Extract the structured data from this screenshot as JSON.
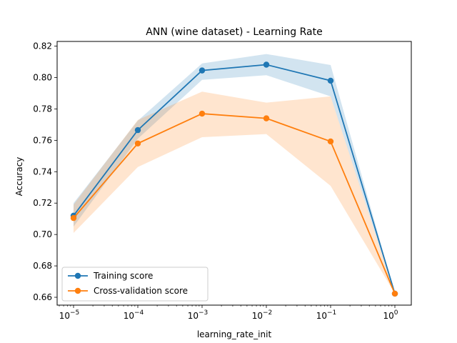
{
  "chart_data": {
    "type": "line",
    "title": "ANN (wine dataset) - Learning Rate",
    "xlabel": "learning_rate_init",
    "ylabel": "Accuracy",
    "xscale": "log",
    "xlim": [
      1e-05,
      1
    ],
    "ylim": [
      0.655,
      0.823
    ],
    "x": [
      1e-05,
      0.0001,
      0.001,
      0.01,
      0.1,
      1
    ],
    "x_tick_labels": [
      {
        "base": "10",
        "exp": "−5"
      },
      {
        "base": "10",
        "exp": "−4"
      },
      {
        "base": "10",
        "exp": "−3"
      },
      {
        "base": "10",
        "exp": "−2"
      },
      {
        "base": "10",
        "exp": "−1"
      },
      {
        "base": "10",
        "exp": "0"
      }
    ],
    "y_ticks": [
      0.66,
      0.68,
      0.7,
      0.72,
      0.74,
      0.76,
      0.78,
      0.8,
      0.82
    ],
    "y_tick_labels": [
      "0.66",
      "0.68",
      "0.70",
      "0.72",
      "0.74",
      "0.76",
      "0.78",
      "0.80",
      "0.82"
    ],
    "legend_position": "lower-left",
    "series": [
      {
        "name": "Training score",
        "color": "#1f77b4",
        "values": [
          0.712,
          0.7665,
          0.8045,
          0.8082,
          0.798,
          0.6623
        ],
        "lower": [
          0.705,
          0.761,
          0.7985,
          0.8015,
          0.788,
          0.6623
        ],
        "upper": [
          0.72,
          0.7725,
          0.809,
          0.815,
          0.808,
          0.6623
        ]
      },
      {
        "name": "Cross-validation score",
        "color": "#ff7f0e",
        "values": [
          0.7105,
          0.758,
          0.777,
          0.774,
          0.7593,
          0.6623
        ],
        "lower": [
          0.701,
          0.743,
          0.762,
          0.764,
          0.731,
          0.6623
        ],
        "upper": [
          0.719,
          0.773,
          0.791,
          0.784,
          0.788,
          0.6623
        ]
      }
    ]
  }
}
